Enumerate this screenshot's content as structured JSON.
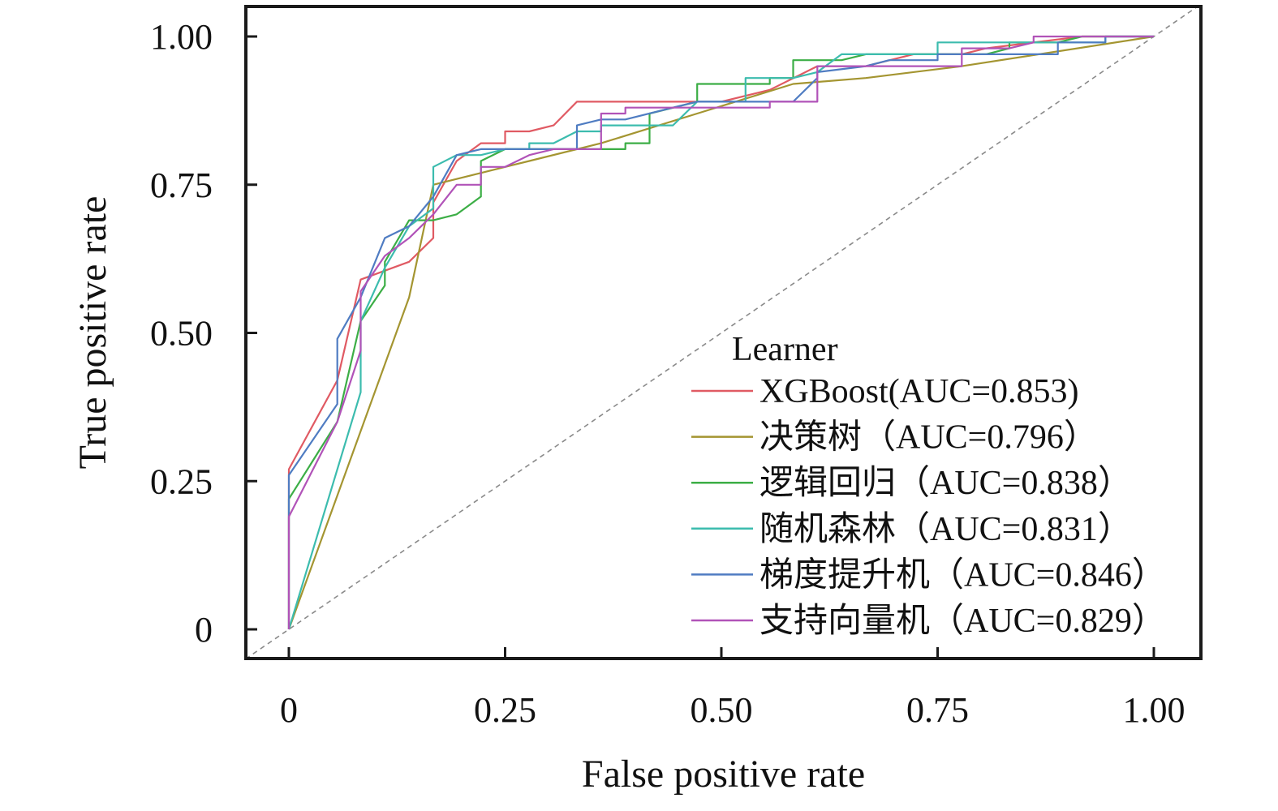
{
  "chart_data": {
    "type": "line",
    "title": "",
    "xlabel": "False positive rate",
    "ylabel": "True positive rate",
    "xlim": [
      0,
      1
    ],
    "ylim": [
      0,
      1
    ],
    "xticks": [
      0,
      0.25,
      0.5,
      0.75,
      1.0
    ],
    "xtick_labels": [
      "0",
      "0.25",
      "0.50",
      "0.75",
      "1.00"
    ],
    "yticks": [
      0,
      0.25,
      0.5,
      0.75,
      1.0
    ],
    "ytick_labels": [
      "0",
      "0.25",
      "0.50",
      "0.75",
      "1.00"
    ],
    "grid": false,
    "reference_line": {
      "style": "dashed",
      "color": "#8a8a8a",
      "points": [
        [
          -0.05,
          -0.05
        ],
        [
          1.05,
          1.05
        ]
      ]
    },
    "legend": {
      "title": "Learner",
      "placement": "bottom-right"
    },
    "series": [
      {
        "name": "XGBoost(AUC=0.853)",
        "color": "#e05a63",
        "points": [
          [
            0,
            0
          ],
          [
            0,
            0.27
          ],
          [
            0.056,
            0.42
          ],
          [
            0.083,
            0.59
          ],
          [
            0.139,
            0.62
          ],
          [
            0.167,
            0.66
          ],
          [
            0.167,
            0.72
          ],
          [
            0.194,
            0.79
          ],
          [
            0.222,
            0.82
          ],
          [
            0.25,
            0.82
          ],
          [
            0.25,
            0.84
          ],
          [
            0.278,
            0.84
          ],
          [
            0.306,
            0.85
          ],
          [
            0.333,
            0.89
          ],
          [
            0.361,
            0.89
          ],
          [
            0.5,
            0.89
          ],
          [
            0.556,
            0.91
          ],
          [
            0.611,
            0.95
          ],
          [
            0.667,
            0.95
          ],
          [
            0.722,
            0.97
          ],
          [
            0.778,
            0.97
          ],
          [
            0.806,
            0.98
          ],
          [
            0.861,
            0.99
          ],
          [
            0.917,
            1.0
          ],
          [
            1.0,
            1.0
          ]
        ]
      },
      {
        "name": "决策树（AUC=0.796）",
        "color": "#a49531",
        "points": [
          [
            0,
            0
          ],
          [
            0.139,
            0.56
          ],
          [
            0.167,
            0.75
          ],
          [
            0.278,
            0.79
          ],
          [
            0.361,
            0.82
          ],
          [
            0.472,
            0.87
          ],
          [
            0.583,
            0.92
          ],
          [
            0.667,
            0.93
          ],
          [
            0.778,
            0.95
          ],
          [
            1.0,
            1.0
          ]
        ]
      },
      {
        "name": "逻辑回归（AUC=0.838）",
        "color": "#3cae46",
        "points": [
          [
            0,
            0
          ],
          [
            0,
            0.22
          ],
          [
            0.056,
            0.35
          ],
          [
            0.083,
            0.52
          ],
          [
            0.111,
            0.58
          ],
          [
            0.111,
            0.62
          ],
          [
            0.139,
            0.69
          ],
          [
            0.167,
            0.69
          ],
          [
            0.194,
            0.7
          ],
          [
            0.222,
            0.73
          ],
          [
            0.222,
            0.79
          ],
          [
            0.25,
            0.81
          ],
          [
            0.361,
            0.81
          ],
          [
            0.389,
            0.81
          ],
          [
            0.389,
            0.82
          ],
          [
            0.417,
            0.82
          ],
          [
            0.417,
            0.87
          ],
          [
            0.472,
            0.89
          ],
          [
            0.472,
            0.92
          ],
          [
            0.556,
            0.92
          ],
          [
            0.556,
            0.93
          ],
          [
            0.583,
            0.93
          ],
          [
            0.583,
            0.96
          ],
          [
            0.639,
            0.96
          ],
          [
            0.667,
            0.97
          ],
          [
            0.806,
            0.97
          ],
          [
            0.833,
            0.98
          ],
          [
            0.833,
            0.99
          ],
          [
            0.889,
            0.99
          ],
          [
            0.917,
            1.0
          ],
          [
            1.0,
            1.0
          ]
        ]
      },
      {
        "name": "随机森林（AUC=0.831）",
        "color": "#3cbcae",
        "points": [
          [
            0,
            0
          ],
          [
            0.083,
            0.4
          ],
          [
            0.083,
            0.52
          ],
          [
            0.111,
            0.61
          ],
          [
            0.139,
            0.68
          ],
          [
            0.167,
            0.71
          ],
          [
            0.167,
            0.78
          ],
          [
            0.194,
            0.8
          ],
          [
            0.222,
            0.8
          ],
          [
            0.25,
            0.81
          ],
          [
            0.278,
            0.81
          ],
          [
            0.278,
            0.82
          ],
          [
            0.306,
            0.82
          ],
          [
            0.333,
            0.84
          ],
          [
            0.361,
            0.84
          ],
          [
            0.361,
            0.85
          ],
          [
            0.417,
            0.85
          ],
          [
            0.444,
            0.85
          ],
          [
            0.472,
            0.89
          ],
          [
            0.528,
            0.89
          ],
          [
            0.528,
            0.93
          ],
          [
            0.583,
            0.93
          ],
          [
            0.611,
            0.94
          ],
          [
            0.639,
            0.97
          ],
          [
            0.722,
            0.97
          ],
          [
            0.75,
            0.97
          ],
          [
            0.75,
            0.99
          ],
          [
            0.944,
            0.99
          ],
          [
            0.944,
            1.0
          ],
          [
            1.0,
            1.0
          ]
        ]
      },
      {
        "name": "梯度提升机（AUC=0.846）",
        "color": "#4f7cc2",
        "points": [
          [
            0,
            0
          ],
          [
            0,
            0.26
          ],
          [
            0.056,
            0.38
          ],
          [
            0.056,
            0.49
          ],
          [
            0.083,
            0.56
          ],
          [
            0.111,
            0.66
          ],
          [
            0.139,
            0.68
          ],
          [
            0.167,
            0.73
          ],
          [
            0.194,
            0.8
          ],
          [
            0.222,
            0.81
          ],
          [
            0.333,
            0.81
          ],
          [
            0.333,
            0.85
          ],
          [
            0.361,
            0.86
          ],
          [
            0.389,
            0.86
          ],
          [
            0.444,
            0.88
          ],
          [
            0.472,
            0.89
          ],
          [
            0.583,
            0.89
          ],
          [
            0.611,
            0.93
          ],
          [
            0.611,
            0.94
          ],
          [
            0.667,
            0.95
          ],
          [
            0.694,
            0.96
          ],
          [
            0.75,
            0.96
          ],
          [
            0.75,
            0.97
          ],
          [
            0.889,
            0.97
          ],
          [
            0.889,
            0.99
          ],
          [
            0.944,
            0.99
          ],
          [
            0.944,
            1.0
          ],
          [
            1.0,
            1.0
          ]
        ]
      },
      {
        "name": "支持向量机（AUC=0.829）",
        "color": "#b153b8",
        "points": [
          [
            0,
            0
          ],
          [
            0,
            0.19
          ],
          [
            0.056,
            0.35
          ],
          [
            0.083,
            0.47
          ],
          [
            0.083,
            0.57
          ],
          [
            0.111,
            0.63
          ],
          [
            0.139,
            0.66
          ],
          [
            0.167,
            0.7
          ],
          [
            0.194,
            0.75
          ],
          [
            0.222,
            0.75
          ],
          [
            0.222,
            0.78
          ],
          [
            0.25,
            0.78
          ],
          [
            0.278,
            0.8
          ],
          [
            0.306,
            0.81
          ],
          [
            0.361,
            0.81
          ],
          [
            0.361,
            0.87
          ],
          [
            0.389,
            0.87
          ],
          [
            0.389,
            0.88
          ],
          [
            0.5,
            0.88
          ],
          [
            0.556,
            0.88
          ],
          [
            0.556,
            0.89
          ],
          [
            0.611,
            0.89
          ],
          [
            0.611,
            0.95
          ],
          [
            0.667,
            0.95
          ],
          [
            0.778,
            0.95
          ],
          [
            0.778,
            0.98
          ],
          [
            0.833,
            0.98
          ],
          [
            0.861,
            0.99
          ],
          [
            0.861,
            1.0
          ],
          [
            1.0,
            1.0
          ]
        ]
      }
    ]
  }
}
